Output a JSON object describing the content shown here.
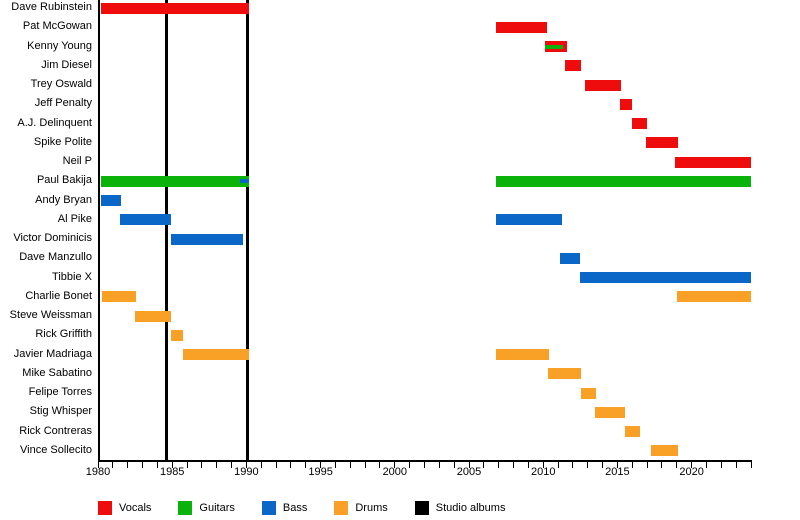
{
  "chart_data": {
    "type": "bar",
    "subtype": "gantt-member-timeline",
    "title": "",
    "xlabel": "",
    "ylabel": "",
    "xlim": [
      1980,
      2024
    ],
    "x_major_ticks": [
      1980,
      1985,
      1990,
      1995,
      2000,
      2005,
      2010,
      2015,
      2020
    ],
    "x_minor_tick_interval": 1,
    "grid": false,
    "legend_position": "bottom",
    "colors": {
      "vocals": "#ee0c0c",
      "guitars": "#0ab20a",
      "bass": "#0a67c7",
      "drums": "#f9a127",
      "albums": "#000000"
    },
    "legend": [
      {
        "key": "vocals",
        "label": "Vocals"
      },
      {
        "key": "guitars",
        "label": "Guitars"
      },
      {
        "key": "bass",
        "label": "Bass"
      },
      {
        "key": "drums",
        "label": "Drums"
      },
      {
        "key": "albums",
        "label": "Studio albums"
      }
    ],
    "album_lines_years": [
      1984.6,
      1990.05
    ],
    "rows": [
      {
        "label": "Dave Rubinstein",
        "segments": [
          {
            "role": "vocals",
            "start": 1980.2,
            "end": 1990.2
          }
        ]
      },
      {
        "label": "Pat McGowan",
        "segments": [
          {
            "role": "vocals",
            "start": 2006.8,
            "end": 2010.25
          }
        ]
      },
      {
        "label": "Kenny Young",
        "segments": [
          {
            "role": "vocals",
            "start": 2010.15,
            "end": 2011.6,
            "overlay": {
              "role": "guitars",
              "start": 2010.15,
              "end": 2011.35
            }
          }
        ]
      },
      {
        "label": "Jim Diesel",
        "segments": [
          {
            "role": "vocals",
            "start": 2011.5,
            "end": 2012.55
          }
        ]
      },
      {
        "label": "Trey Oswald",
        "segments": [
          {
            "role": "vocals",
            "start": 2012.8,
            "end": 2015.25
          }
        ]
      },
      {
        "label": "Jeff Penalty",
        "segments": [
          {
            "role": "vocals",
            "start": 2015.2,
            "end": 2016.0
          }
        ]
      },
      {
        "label": "A.J. Delinquent",
        "segments": [
          {
            "role": "vocals",
            "start": 2016.0,
            "end": 2017.0
          }
        ]
      },
      {
        "label": "Spike Polite",
        "segments": [
          {
            "role": "vocals",
            "start": 2016.9,
            "end": 2019.05
          }
        ]
      },
      {
        "label": "Neil P",
        "segments": [
          {
            "role": "vocals",
            "start": 2018.9,
            "end": 2024.0
          }
        ]
      },
      {
        "label": "Paul Bakija",
        "segments": [
          {
            "role": "guitars",
            "start": 1980.2,
            "end": 1990.2,
            "overlay": {
              "role": "bass",
              "start": 1989.6,
              "end": 1990.2
            }
          },
          {
            "role": "guitars",
            "start": 2006.8,
            "end": 2024.0
          }
        ]
      },
      {
        "label": "Andy Bryan",
        "segments": [
          {
            "role": "bass",
            "start": 1980.2,
            "end": 1981.55
          }
        ]
      },
      {
        "label": "Al Pike",
        "segments": [
          {
            "role": "bass",
            "start": 1981.5,
            "end": 1984.9
          },
          {
            "role": "bass",
            "start": 2006.8,
            "end": 2011.25
          }
        ]
      },
      {
        "label": "Victor Dominicis",
        "segments": [
          {
            "role": "bass",
            "start": 1984.9,
            "end": 1989.75
          }
        ]
      },
      {
        "label": "Dave Manzullo",
        "segments": [
          {
            "role": "bass",
            "start": 2011.1,
            "end": 2012.5
          }
        ]
      },
      {
        "label": "Tibbie X",
        "segments": [
          {
            "role": "bass",
            "start": 2012.5,
            "end": 2024.0
          }
        ]
      },
      {
        "label": "Charlie Bonet",
        "segments": [
          {
            "role": "drums",
            "start": 1980.25,
            "end": 1982.55
          },
          {
            "role": "drums",
            "start": 2019.0,
            "end": 2024.0
          }
        ]
      },
      {
        "label": "Steve Weissman",
        "segments": [
          {
            "role": "drums",
            "start": 1982.5,
            "end": 1984.9
          }
        ]
      },
      {
        "label": "Rick Griffith",
        "segments": [
          {
            "role": "drums",
            "start": 1984.9,
            "end": 1985.75
          }
        ]
      },
      {
        "label": "Javier Madriaga",
        "segments": [
          {
            "role": "drums",
            "start": 1985.7,
            "end": 1990.2
          },
          {
            "role": "drums",
            "start": 2006.8,
            "end": 2010.4
          }
        ]
      },
      {
        "label": "Mike Sabatino",
        "segments": [
          {
            "role": "drums",
            "start": 2010.35,
            "end": 2012.55
          }
        ]
      },
      {
        "label": "Felipe Torres",
        "segments": [
          {
            "role": "drums",
            "start": 2012.55,
            "end": 2013.55
          }
        ]
      },
      {
        "label": "Stig Whisper",
        "segments": [
          {
            "role": "drums",
            "start": 2013.5,
            "end": 2015.5
          }
        ]
      },
      {
        "label": "Rick Contreras",
        "segments": [
          {
            "role": "drums",
            "start": 2015.5,
            "end": 2016.55
          }
        ]
      },
      {
        "label": "Vince Sollecito",
        "segments": [
          {
            "role": "drums",
            "start": 2017.25,
            "end": 2019.05
          }
        ]
      }
    ]
  }
}
